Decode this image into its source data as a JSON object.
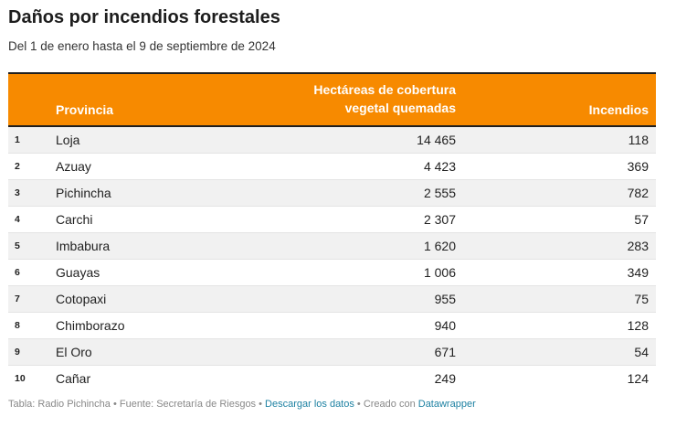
{
  "title": "Daños por incendios forestales",
  "subtitle": "Del 1 de enero hasta el 9 de septiembre de 2024",
  "colors": {
    "header_bg": "#f78a00",
    "header_text": "#ffffff",
    "row_alt": "#f1f1f1",
    "link": "#1d81a2"
  },
  "chart_data": {
    "type": "table",
    "columns": [
      "",
      "Provincia",
      "Hectáreas de cobertura vegetal quemadas",
      "Incendios"
    ],
    "header_hect_line1": "Hectáreas de cobertura",
    "header_hect_line2": "vegetal quemadas",
    "rows": [
      {
        "rank": "1",
        "provincia": "Loja",
        "hectareas": "14 465",
        "incendios": "118"
      },
      {
        "rank": "2",
        "provincia": "Azuay",
        "hectareas": "4 423",
        "incendios": "369"
      },
      {
        "rank": "3",
        "provincia": "Pichincha",
        "hectareas": "2 555",
        "incendios": "782"
      },
      {
        "rank": "4",
        "provincia": "Carchi",
        "hectareas": "2 307",
        "incendios": "57"
      },
      {
        "rank": "5",
        "provincia": "Imbabura",
        "hectareas": "1 620",
        "incendios": "283"
      },
      {
        "rank": "6",
        "provincia": "Guayas",
        "hectareas": "1 006",
        "incendios": "349"
      },
      {
        "rank": "7",
        "provincia": "Cotopaxi",
        "hectareas": "955",
        "incendios": "75"
      },
      {
        "rank": "8",
        "provincia": "Chimborazo",
        "hectareas": "940",
        "incendios": "128"
      },
      {
        "rank": "9",
        "provincia": "El Oro",
        "hectareas": "671",
        "incendios": "54"
      },
      {
        "rank": "10",
        "provincia": "Cañar",
        "hectareas": "249",
        "incendios": "124"
      }
    ]
  },
  "footer": {
    "prefix": "Tabla: Radio Pichincha • Fuente: Secretaría de Riesgos • ",
    "download_link": "Descargar los datos",
    "middle": " • Creado con ",
    "tool_link": "Datawrapper"
  }
}
